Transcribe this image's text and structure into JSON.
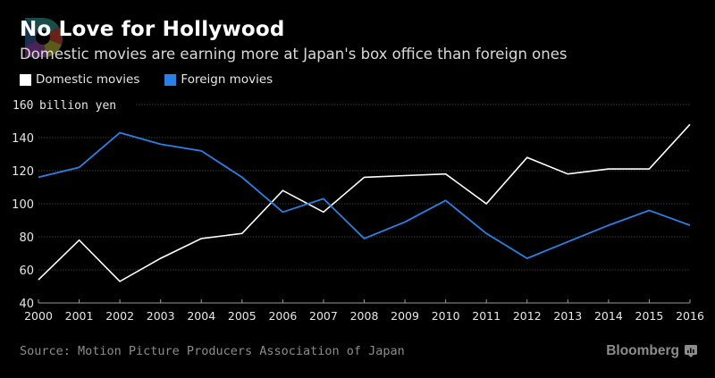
{
  "title": "No Love for Hollywood",
  "subtitle": "Domestic movies are earning more at Japan's box office than foreign ones",
  "source": "Source: Motion Picture Producers Association of Japan",
  "brand": "Bloomberg",
  "colors": {
    "domestic": "#ffffff",
    "foreign": "#2b80e6",
    "background": "#000000",
    "grid": "#3a3a3a"
  },
  "chart_data": {
    "type": "line",
    "title": "No Love for Hollywood",
    "subtitle": "Domestic movies are earning more at Japan's box office than foreign ones",
    "xlabel": "",
    "ylabel": "billion yen",
    "y_unit_label": "billion yen",
    "ylim": [
      40,
      160
    ],
    "y_ticks": [
      40,
      60,
      80,
      100,
      120,
      140,
      160
    ],
    "y_tick_labels": [
      "40",
      "60",
      "80",
      "100",
      "120",
      "140",
      "160"
    ],
    "x": [
      "2000",
      "2001",
      "2002",
      "2003",
      "2004",
      "2005",
      "2006",
      "2007",
      "2008",
      "2009",
      "2010",
      "2011",
      "2012",
      "2013",
      "2014",
      "2015",
      "2016"
    ],
    "grid": true,
    "legend_position": "top-left",
    "series": [
      {
        "name": "Domestic movies",
        "color": "#ffffff",
        "values": [
          54,
          78,
          53,
          67,
          79,
          82,
          108,
          95,
          116,
          117,
          118,
          100,
          128,
          118,
          121,
          121,
          148
        ]
      },
      {
        "name": "Foreign movies",
        "color": "#2b80e6",
        "values": [
          116,
          122,
          143,
          136,
          132,
          116,
          95,
          103,
          79,
          89,
          102,
          82,
          67,
          77,
          87,
          96,
          87
        ]
      }
    ]
  }
}
